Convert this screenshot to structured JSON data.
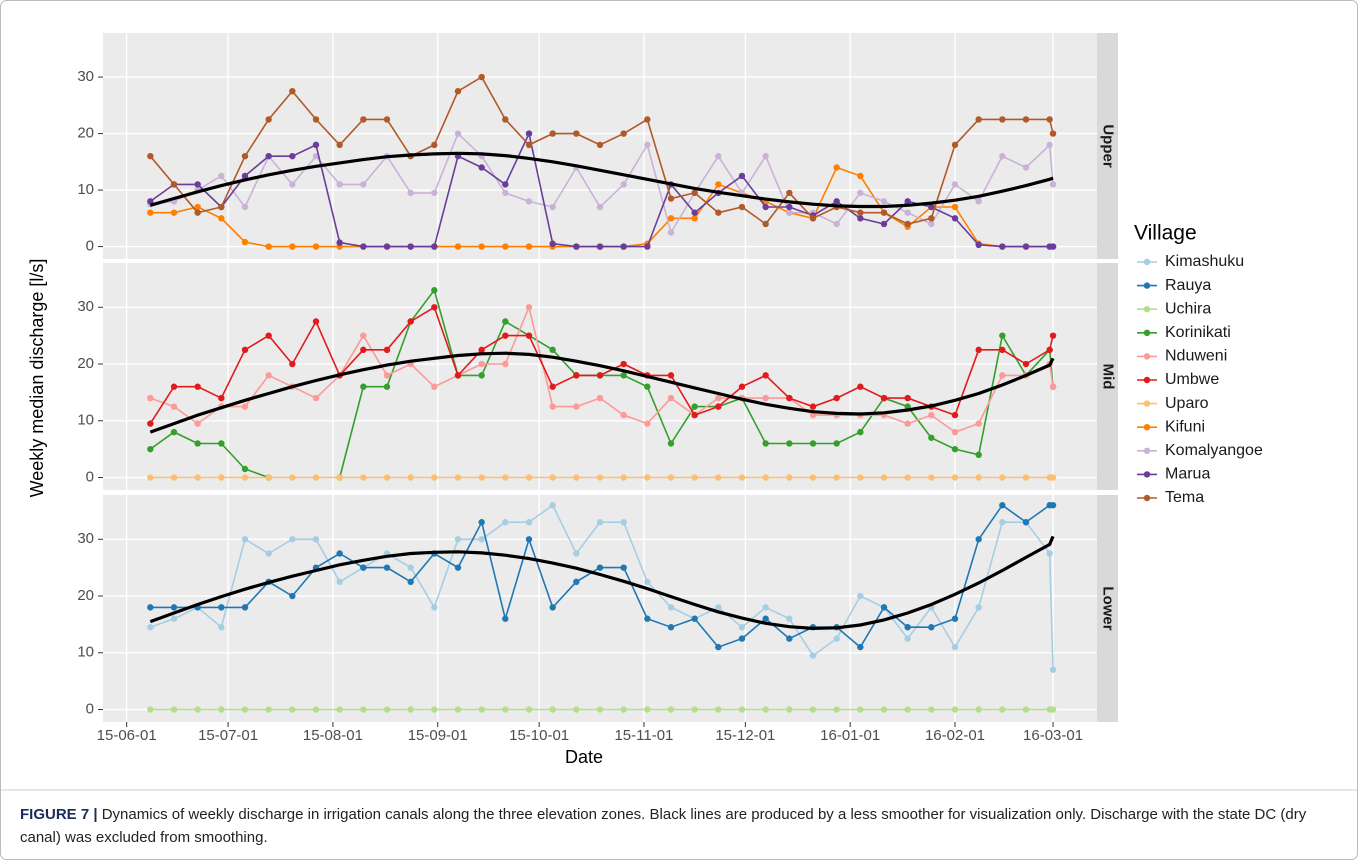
{
  "chart_data": {
    "type": "line",
    "xlabel": "Date",
    "ylabel": "Weekly median discharge [l/s]",
    "legend_title": "Village",
    "x": [
      "15-06-08",
      "15-06-15",
      "15-06-22",
      "15-06-29",
      "15-07-06",
      "15-07-13",
      "15-07-20",
      "15-07-27",
      "15-08-03",
      "15-08-10",
      "15-08-17",
      "15-08-24",
      "15-08-31",
      "15-09-07",
      "15-09-14",
      "15-09-21",
      "15-09-28",
      "15-10-05",
      "15-10-12",
      "15-10-19",
      "15-10-26",
      "15-11-02",
      "15-11-09",
      "15-11-16",
      "15-11-23",
      "15-11-30",
      "15-12-07",
      "15-12-14",
      "15-12-21",
      "15-12-28",
      "16-01-04",
      "16-01-11",
      "16-01-18",
      "16-01-25",
      "16-02-01",
      "16-02-08",
      "16-02-15",
      "16-02-22",
      "16-02-29",
      "16-03-01"
    ],
    "xlim": [
      "15-05-25",
      "16-03-14"
    ],
    "xticks": [
      "15-06-01",
      "15-07-01",
      "15-08-01",
      "15-09-01",
      "15-10-01",
      "15-11-01",
      "15-12-01",
      "16-01-01",
      "16-02-01",
      "16-03-01"
    ],
    "ylim": [
      -2.2,
      37.8
    ],
    "yticks": [
      0,
      10,
      20,
      30
    ],
    "grid": true,
    "panels": [
      {
        "title": "Upper",
        "loess": {
          "color": "#000000",
          "values": [
            7.3,
            8.5,
            9.7,
            10.8,
            11.8,
            12.7,
            13.5,
            14.2,
            14.8,
            15.4,
            15.9,
            16.2,
            16.4,
            16.5,
            16.4,
            16.1,
            15.6,
            15,
            14.3,
            13.5,
            12.7,
            11.9,
            11.1,
            10.3,
            9.6,
            9,
            8.4,
            7.9,
            7.5,
            7.2,
            7.1,
            7.1,
            7.3,
            7.7,
            8.2,
            8.9,
            9.8,
            10.8,
            11.9,
            12.1
          ]
        },
        "series": [
          {
            "name": "Kifuni",
            "color": "#ff7f00",
            "values": [
              6,
              6,
              7,
              5,
              0.8,
              0,
              0,
              0,
              0,
              0,
              0,
              0,
              0,
              0,
              0,
              0,
              0,
              0,
              0,
              0,
              0,
              0.5,
              5,
              5,
              11,
              9.5,
              8,
              6,
              5,
              14,
              12.5,
              6,
              3.5,
              7,
              7,
              0.5,
              0,
              0,
              0,
              0
            ]
          },
          {
            "name": "Komalyangoe",
            "color": "#cab2d6",
            "values": [
              7.5,
              8,
              10,
              12.5,
              7,
              16,
              11,
              16,
              11,
              11,
              16,
              9.5,
              9.5,
              20,
              16,
              9.5,
              8,
              7,
              14,
              7,
              11,
              18,
              2.5,
              9.5,
              16,
              9.5,
              16,
              6,
              6,
              4,
              9.5,
              8,
              6,
              4,
              11,
              8,
              16,
              14,
              18,
              11
            ]
          },
          {
            "name": "Marua",
            "color": "#6a3d9a",
            "values": [
              8,
              11,
              11,
              7,
              12.5,
              16,
              16,
              18,
              0.7,
              0,
              0,
              0,
              0,
              16,
              14,
              11,
              20,
              0.5,
              0,
              0,
              0,
              0,
              11,
              6,
              9.5,
              12.5,
              7,
              7,
              5.5,
              8,
              5,
              4,
              8,
              7,
              5,
              0.3,
              0,
              0,
              0,
              0
            ]
          },
          {
            "name": "Tema",
            "color": "#b15928",
            "values": [
              16,
              11,
              6,
              7,
              16,
              22.5,
              27.5,
              22.5,
              18,
              22.5,
              22.5,
              16,
              18,
              27.5,
              30,
              22.5,
              18,
              20,
              20,
              18,
              20,
              22.5,
              8.5,
              9.5,
              6,
              7,
              4,
              9.5,
              5,
              7,
              6,
              6,
              4,
              5,
              18,
              22.5,
              22.5,
              22.5,
              22.5,
              20
            ]
          }
        ]
      },
      {
        "title": "Mid",
        "loess": {
          "color": "#000000",
          "values": [
            8,
            9.5,
            11,
            12.3,
            13.6,
            14.8,
            16,
            17.1,
            18.1,
            19,
            19.8,
            20.5,
            21,
            21.5,
            21.8,
            21.9,
            21.7,
            21.2,
            20.5,
            19.7,
            18.8,
            17.8,
            16.8,
            15.8,
            14.8,
            13.8,
            12.9,
            12.2,
            11.6,
            11.3,
            11.2,
            11.4,
            11.9,
            12.6,
            13.6,
            14.8,
            16.3,
            18,
            19.8,
            21
          ]
        },
        "series": [
          {
            "name": "Korinikati",
            "color": "#33a02c",
            "values": [
              5,
              8,
              6,
              6,
              1.5,
              0,
              null,
              null,
              0,
              16,
              16,
              27.5,
              33,
              18,
              18,
              27.5,
              25,
              22.5,
              18,
              18,
              18,
              16,
              6,
              12.5,
              12.5,
              14,
              6,
              6,
              6,
              6,
              8,
              14,
              12.5,
              7,
              5,
              4,
              25,
              18,
              22.5,
              16
            ]
          },
          {
            "name": "Nduweni",
            "color": "#fb9a99",
            "values": [
              14,
              12.5,
              9.5,
              12.5,
              12.5,
              18,
              16,
              14,
              18,
              25,
              18,
              20,
              16,
              18,
              20,
              20,
              30,
              12.5,
              12.5,
              14,
              11,
              9.5,
              14,
              11,
              14,
              14,
              14,
              14,
              11,
              11,
              11,
              11,
              9.5,
              11,
              8,
              9.5,
              18,
              18,
              20,
              16
            ]
          },
          {
            "name": "Umbwe",
            "color": "#e31a1c",
            "values": [
              9.5,
              16,
              16,
              14,
              22.5,
              25,
              20,
              27.5,
              18,
              22.5,
              22.5,
              27.5,
              30,
              18,
              22.5,
              25,
              25,
              16,
              18,
              18,
              20,
              18,
              18,
              11,
              12.5,
              16,
              18,
              14,
              12.5,
              14,
              16,
              14,
              14,
              12.5,
              11,
              22.5,
              22.5,
              20,
              22.5,
              25
            ]
          },
          {
            "name": "Uparo",
            "color": "#fdbf6f",
            "values": [
              0,
              0,
              0,
              0,
              0,
              0,
              0,
              0,
              0,
              0,
              0,
              0,
              0,
              0,
              0,
              0,
              0,
              0,
              0,
              0,
              0,
              0,
              0,
              0,
              0,
              0,
              0,
              0,
              0,
              0,
              0,
              0,
              0,
              0,
              0,
              0,
              0,
              0,
              0,
              0
            ]
          }
        ]
      },
      {
        "title": "Lower",
        "loess": {
          "color": "#000000",
          "values": [
            15.5,
            17,
            18.5,
            19.9,
            21.2,
            22.4,
            23.5,
            24.5,
            25.5,
            26.3,
            27,
            27.5,
            27.7,
            27.8,
            27.6,
            27.2,
            26.6,
            25.8,
            24.9,
            23.8,
            22.6,
            21.3,
            19.9,
            18.5,
            17.2,
            16.1,
            15.2,
            14.6,
            14.3,
            14.4,
            14.9,
            15.8,
            17,
            18.5,
            20.3,
            22.3,
            24.5,
            26.8,
            29.1,
            30.5
          ]
        },
        "series": [
          {
            "name": "Kimashuku",
            "color": "#a6cee3",
            "values": [
              14.5,
              16,
              18,
              14.5,
              30,
              27.5,
              30,
              30,
              22.5,
              25,
              27.5,
              25,
              18,
              30,
              30,
              33,
              33,
              36,
              27.5,
              33,
              33,
              22.5,
              18,
              16,
              18,
              14.5,
              18,
              16,
              9.5,
              12.5,
              20,
              18,
              12.5,
              18,
              11,
              18,
              33,
              33,
              27.5,
              7
            ]
          },
          {
            "name": "Rauya",
            "color": "#1f78b4",
            "values": [
              18,
              18,
              18,
              18,
              18,
              22.5,
              20,
              25,
              27.5,
              25,
              25,
              22.5,
              27.5,
              25,
              33,
              16,
              30,
              18,
              22.5,
              25,
              25,
              16,
              14.5,
              16,
              11,
              12.5,
              16,
              12.5,
              14.5,
              14.5,
              11,
              18,
              14.5,
              14.5,
              16,
              30,
              36,
              33,
              36,
              36
            ]
          },
          {
            "name": "Uchira",
            "color": "#b2df8a",
            "values": [
              0,
              0,
              0,
              0,
              0,
              0,
              0,
              0,
              0,
              0,
              0,
              0,
              0,
              0,
              0,
              0,
              0,
              0,
              0,
              0,
              0,
              0,
              0,
              0,
              0,
              0,
              0,
              0,
              0,
              0,
              0,
              0,
              0,
              0,
              0,
              0,
              0,
              0,
              0,
              0
            ]
          }
        ]
      }
    ]
  },
  "caption": {
    "label": "FIGURE 7 |",
    "text": "Dynamics of weekly discharge in irrigation canals along the three elevation zones. Black lines are produced by a less smoother for visualization only. Discharge with the state DC (dry canal) was excluded from smoothing."
  }
}
